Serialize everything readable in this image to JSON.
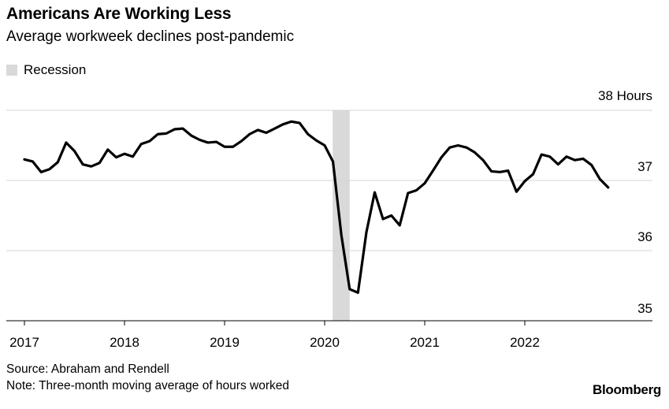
{
  "title": "Americans Are Working Less",
  "subtitle": "Average workweek declines post-pandemic",
  "legend": {
    "recession_label": "Recession",
    "recession_color": "#d9d9d9"
  },
  "source": "Source: Abraham and Rendell",
  "note": "Note: Three-month moving average of hours worked",
  "brand": "Bloomberg",
  "chart_data": {
    "type": "line",
    "title": "Americans Are Working Less",
    "subtitle": "Average workweek declines post-pandemic",
    "xlabel": "",
    "ylabel": "",
    "unit_label": "Hours",
    "y_ticks": [
      35,
      36,
      37,
      38
    ],
    "y_tick_labels": [
      "35",
      "36",
      "37",
      "38 Hours"
    ],
    "ylim": [
      35,
      38
    ],
    "x_ticks": [
      2017,
      2018,
      2019,
      2020,
      2021,
      2022
    ],
    "x_tick_labels": [
      "2017",
      "2018",
      "2019",
      "2020",
      "2021",
      "2022"
    ],
    "xlim": [
      2017.0,
      2023.0
    ],
    "grid": true,
    "y_axis_position": "right",
    "legend_placement": "top-left",
    "line_color": "#000000",
    "recession": {
      "label": "Recession",
      "start": 2020.08,
      "end": 2020.25
    },
    "series": [
      {
        "x": [
          2017.0,
          2017.083,
          2017.167,
          2017.25,
          2017.333,
          2017.417,
          2017.5,
          2017.583,
          2017.667,
          2017.75,
          2017.833,
          2017.917,
          2018.0,
          2018.083,
          2018.167,
          2018.25,
          2018.333,
          2018.417,
          2018.5,
          2018.583,
          2018.667,
          2018.75,
          2018.833,
          2018.917,
          2019.0,
          2019.083,
          2019.167,
          2019.25,
          2019.333,
          2019.417,
          2019.5,
          2019.583,
          2019.667,
          2019.75,
          2019.833,
          2019.917,
          2020.0,
          2020.083,
          2020.167,
          2020.25,
          2020.333,
          2020.417,
          2020.5,
          2020.583,
          2020.667,
          2020.75,
          2020.833,
          2020.917,
          2021.0,
          2021.083,
          2021.167,
          2021.25,
          2021.333,
          2021.417,
          2021.5,
          2021.583,
          2021.667,
          2021.75,
          2021.833,
          2021.917,
          2022.0,
          2022.083,
          2022.167,
          2022.25,
          2022.333,
          2022.417,
          2022.5,
          2022.583,
          2022.667,
          2022.75,
          2022.833
        ],
        "values": [
          37.3,
          37.27,
          37.12,
          37.16,
          37.26,
          37.54,
          37.42,
          37.23,
          37.2,
          37.25,
          37.44,
          37.33,
          37.38,
          37.34,
          37.52,
          37.56,
          37.66,
          37.67,
          37.73,
          37.74,
          37.64,
          37.58,
          37.54,
          37.55,
          37.48,
          37.48,
          37.56,
          37.66,
          37.72,
          37.68,
          37.74,
          37.8,
          37.84,
          37.82,
          37.66,
          37.57,
          37.5,
          37.27,
          36.22,
          35.45,
          35.4,
          36.26,
          36.83,
          36.45,
          36.5,
          36.36,
          36.82,
          36.86,
          36.96,
          37.14,
          37.33,
          37.47,
          37.5,
          37.47,
          37.4,
          37.29,
          37.13,
          37.12,
          37.14,
          36.84,
          36.99,
          37.09,
          37.37,
          37.34,
          37.23,
          37.34,
          37.29,
          37.31,
          37.22,
          37.02,
          36.9
        ]
      }
    ]
  }
}
